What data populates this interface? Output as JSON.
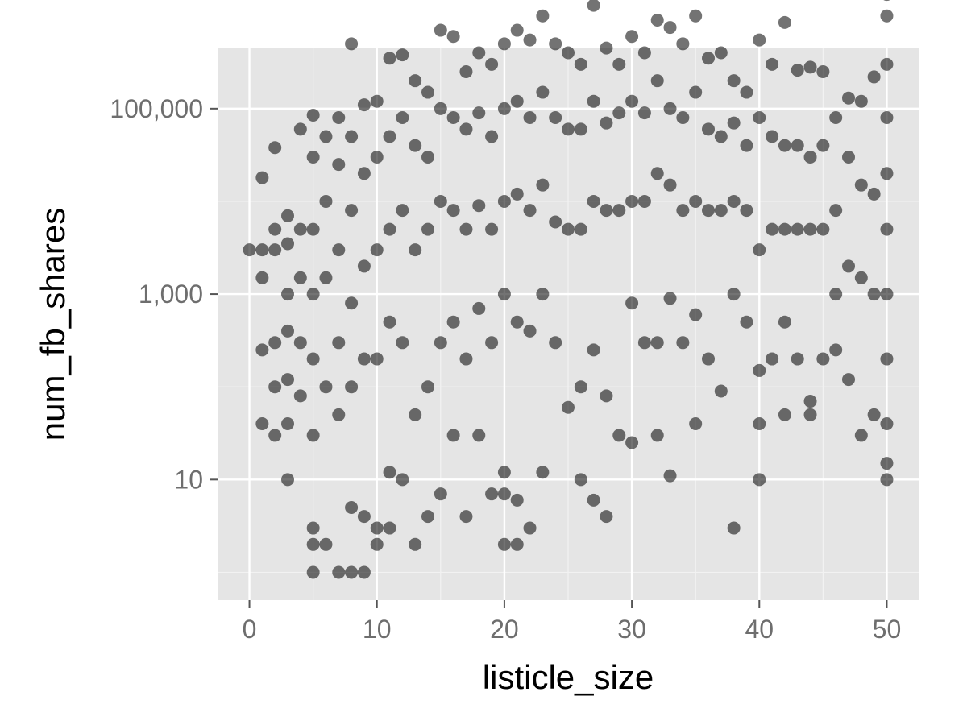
{
  "chart_data": {
    "type": "scatter",
    "title": "",
    "xlabel": "listicle_size",
    "ylabel": "num_fb_shares",
    "x_range": [
      -2.5,
      52.5
    ],
    "y_range_log10": [
      -0.3,
      5.65
    ],
    "y_scale": "log10",
    "grid": true,
    "legend": "none",
    "x_ticks": [
      {
        "value": 0,
        "label": "0"
      },
      {
        "value": 10,
        "label": "10"
      },
      {
        "value": 20,
        "label": "20"
      },
      {
        "value": 30,
        "label": "30"
      },
      {
        "value": 40,
        "label": "40"
      },
      {
        "value": 50,
        "label": "50"
      }
    ],
    "y_ticks": [
      {
        "value": 10,
        "label": "10"
      },
      {
        "value": 1000,
        "label": "1,000"
      },
      {
        "value": 100000,
        "label": "100,000"
      }
    ],
    "colors": {
      "panel_background": "#e5e5e5",
      "grid_major": "#ffffff",
      "grid_minor": "#f2f2f2",
      "point": "#000000",
      "tick_label": "#6e6e6e"
    },
    "point_opacity": 0.55,
    "series": [
      {
        "points": [
          [
            0,
            3000
          ],
          [
            1,
            18000
          ],
          [
            1,
            3000
          ],
          [
            1,
            1500
          ],
          [
            1,
            40
          ],
          [
            1,
            250
          ],
          [
            2,
            38000
          ],
          [
            2,
            5000
          ],
          [
            2,
            3000
          ],
          [
            2,
            300
          ],
          [
            2,
            100
          ],
          [
            2,
            30
          ],
          [
            3,
            7000
          ],
          [
            3,
            3500
          ],
          [
            3,
            1000
          ],
          [
            3,
            400
          ],
          [
            3,
            120
          ],
          [
            3,
            40
          ],
          [
            3,
            10
          ],
          [
            4,
            60000
          ],
          [
            4,
            5000
          ],
          [
            4,
            1500
          ],
          [
            4,
            300
          ],
          [
            4,
            80
          ],
          [
            5,
            85000
          ],
          [
            5,
            30000
          ],
          [
            5,
            5000
          ],
          [
            5,
            1000
          ],
          [
            5,
            200
          ],
          [
            5,
            30
          ],
          [
            5,
            3
          ],
          [
            5,
            2
          ],
          [
            5,
            1
          ],
          [
            6,
            50000
          ],
          [
            6,
            10000
          ],
          [
            6,
            1500
          ],
          [
            6,
            100
          ],
          [
            6,
            2
          ],
          [
            7,
            80000
          ],
          [
            7,
            25000
          ],
          [
            7,
            3000
          ],
          [
            7,
            300
          ],
          [
            7,
            50
          ],
          [
            7,
            1
          ],
          [
            8,
            500000
          ],
          [
            8,
            50000
          ],
          [
            8,
            8000
          ],
          [
            8,
            800
          ],
          [
            8,
            100
          ],
          [
            8,
            5
          ],
          [
            8,
            1
          ],
          [
            9,
            110000
          ],
          [
            9,
            20000
          ],
          [
            9,
            2000
          ],
          [
            9,
            200
          ],
          [
            9,
            4
          ],
          [
            9,
            1
          ],
          [
            10,
            120000
          ],
          [
            10,
            30000
          ],
          [
            10,
            3000
          ],
          [
            10,
            200
          ],
          [
            10,
            3
          ],
          [
            10,
            2
          ],
          [
            11,
            350000
          ],
          [
            11,
            50000
          ],
          [
            11,
            5000
          ],
          [
            11,
            500
          ],
          [
            11,
            12
          ],
          [
            11,
            3
          ],
          [
            12,
            380000
          ],
          [
            12,
            80000
          ],
          [
            12,
            8000
          ],
          [
            12,
            300
          ],
          [
            12,
            10
          ],
          [
            13,
            200000
          ],
          [
            13,
            40000
          ],
          [
            13,
            3000
          ],
          [
            13,
            50
          ],
          [
            13,
            2
          ],
          [
            14,
            150000
          ],
          [
            14,
            30000
          ],
          [
            14,
            5000
          ],
          [
            14,
            100
          ],
          [
            14,
            4
          ],
          [
            15,
            700000
          ],
          [
            15,
            100000
          ],
          [
            15,
            10000
          ],
          [
            15,
            300
          ],
          [
            15,
            7
          ],
          [
            16,
            600000
          ],
          [
            16,
            80000
          ],
          [
            16,
            8000
          ],
          [
            16,
            500
          ],
          [
            16,
            30
          ],
          [
            17,
            250000
          ],
          [
            17,
            60000
          ],
          [
            17,
            5000
          ],
          [
            17,
            200
          ],
          [
            17,
            4
          ],
          [
            18,
            400000
          ],
          [
            18,
            90000
          ],
          [
            18,
            9000
          ],
          [
            18,
            700
          ],
          [
            18,
            30
          ],
          [
            19,
            300000
          ],
          [
            19,
            50000
          ],
          [
            19,
            5000
          ],
          [
            19,
            300
          ],
          [
            19,
            7
          ],
          [
            20,
            500000
          ],
          [
            20,
            100000
          ],
          [
            20,
            10000
          ],
          [
            20,
            1000
          ],
          [
            20,
            12
          ],
          [
            20,
            7
          ],
          [
            20,
            2
          ],
          [
            21,
            700000
          ],
          [
            21,
            120000
          ],
          [
            21,
            12000
          ],
          [
            21,
            500
          ],
          [
            21,
            6
          ],
          [
            21,
            2
          ],
          [
            22,
            550000
          ],
          [
            22,
            80000
          ],
          [
            22,
            8000
          ],
          [
            22,
            400
          ],
          [
            22,
            3
          ],
          [
            23,
            1000000
          ],
          [
            23,
            150000
          ],
          [
            23,
            15000
          ],
          [
            23,
            1000
          ],
          [
            23,
            12
          ],
          [
            24,
            500000
          ],
          [
            24,
            80000
          ],
          [
            24,
            6000
          ],
          [
            24,
            300
          ],
          [
            25,
            400000
          ],
          [
            25,
            60000
          ],
          [
            25,
            5000
          ],
          [
            25,
            60
          ],
          [
            26,
            300000
          ],
          [
            26,
            60000
          ],
          [
            26,
            5000
          ],
          [
            26,
            100
          ],
          [
            26,
            10
          ],
          [
            27,
            1300000
          ],
          [
            27,
            120000
          ],
          [
            27,
            10000
          ],
          [
            27,
            250
          ],
          [
            27,
            6
          ],
          [
            28,
            450000
          ],
          [
            28,
            70000
          ],
          [
            28,
            8000
          ],
          [
            28,
            80
          ],
          [
            28,
            4
          ],
          [
            29,
            300000
          ],
          [
            29,
            90000
          ],
          [
            29,
            8000
          ],
          [
            29,
            30
          ],
          [
            30,
            600000
          ],
          [
            30,
            120000
          ],
          [
            30,
            10000
          ],
          [
            30,
            800
          ],
          [
            30,
            25
          ],
          [
            31,
            400000
          ],
          [
            31,
            90000
          ],
          [
            31,
            10000
          ],
          [
            31,
            300
          ],
          [
            32,
            900000
          ],
          [
            32,
            200000
          ],
          [
            32,
            20000
          ],
          [
            32,
            300
          ],
          [
            32,
            30
          ],
          [
            33,
            750000
          ],
          [
            33,
            100000
          ],
          [
            33,
            15000
          ],
          [
            33,
            900
          ],
          [
            33,
            11
          ],
          [
            34,
            500000
          ],
          [
            34,
            80000
          ],
          [
            34,
            8000
          ],
          [
            34,
            300
          ],
          [
            35,
            1000000
          ],
          [
            35,
            150000
          ],
          [
            35,
            10000
          ],
          [
            35,
            600
          ],
          [
            35,
            40
          ],
          [
            36,
            350000
          ],
          [
            36,
            60000
          ],
          [
            36,
            8000
          ],
          [
            36,
            200
          ],
          [
            37,
            400000
          ],
          [
            37,
            50000
          ],
          [
            37,
            8000
          ],
          [
            37,
            90
          ],
          [
            38,
            200000
          ],
          [
            38,
            70000
          ],
          [
            38,
            10000
          ],
          [
            38,
            1000
          ],
          [
            38,
            3
          ],
          [
            39,
            150000
          ],
          [
            39,
            40000
          ],
          [
            39,
            8000
          ],
          [
            39,
            500
          ],
          [
            40,
            550000
          ],
          [
            40,
            80000
          ],
          [
            40,
            3000
          ],
          [
            40,
            150
          ],
          [
            40,
            40
          ],
          [
            40,
            10
          ],
          [
            41,
            1800000
          ],
          [
            41,
            300000
          ],
          [
            41,
            50000
          ],
          [
            41,
            5000
          ],
          [
            41,
            200
          ],
          [
            42,
            850000
          ],
          [
            42,
            40000
          ],
          [
            42,
            5000
          ],
          [
            42,
            500
          ],
          [
            42,
            50
          ],
          [
            43,
            260000
          ],
          [
            43,
            40000
          ],
          [
            43,
            5000
          ],
          [
            43,
            200
          ],
          [
            44,
            280000
          ],
          [
            44,
            30000
          ],
          [
            44,
            5000
          ],
          [
            44,
            70
          ],
          [
            44,
            50
          ],
          [
            45,
            250000
          ],
          [
            45,
            40000
          ],
          [
            45,
            5000
          ],
          [
            45,
            200
          ],
          [
            46,
            80000
          ],
          [
            46,
            8000
          ],
          [
            46,
            1000
          ],
          [
            46,
            250
          ],
          [
            47,
            130000
          ],
          [
            47,
            30000
          ],
          [
            47,
            2000
          ],
          [
            47,
            120
          ],
          [
            48,
            120000
          ],
          [
            48,
            15000
          ],
          [
            48,
            1500
          ],
          [
            48,
            30
          ],
          [
            49,
            220000
          ],
          [
            49,
            12000
          ],
          [
            49,
            1000
          ],
          [
            49,
            50
          ],
          [
            50,
            1700000
          ],
          [
            50,
            1000000
          ],
          [
            50,
            300000
          ],
          [
            50,
            80000
          ],
          [
            50,
            20000
          ],
          [
            50,
            5000
          ],
          [
            50,
            1000
          ],
          [
            50,
            200
          ],
          [
            50,
            40
          ],
          [
            50,
            15
          ],
          [
            50,
            10
          ]
        ]
      }
    ]
  }
}
